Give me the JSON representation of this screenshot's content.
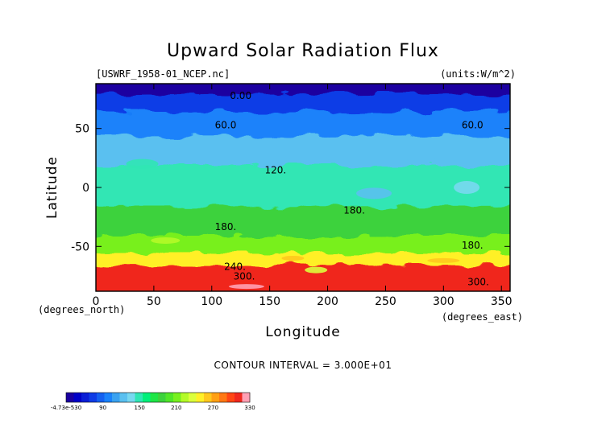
{
  "chart_data": {
    "type": "heatmap",
    "title": "Upward Solar Radiation Flux",
    "file_label": "[USWRF_1958-01_NCEP.nc]",
    "units_label": "(units:W/m^2)",
    "xlabel": "Longitude",
    "ylabel": "Latitude",
    "x_unit_label": "(degrees_east)",
    "y_unit_label": "(degrees_north)",
    "xlim": [
      0,
      357.5
    ],
    "ylim": [
      -88,
      88
    ],
    "x_ticks": [
      0,
      50,
      100,
      150,
      200,
      250,
      300,
      350
    ],
    "y_ticks": [
      50,
      0,
      -50
    ],
    "contour_interval_text": "CONTOUR INTERVAL = 3.000E+01",
    "contour_labels": [
      {
        "text": "0.00",
        "lon": 125,
        "lat": 75
      },
      {
        "text": "60.0",
        "lon": 112,
        "lat": 50
      },
      {
        "text": "60.0",
        "lon": 325,
        "lat": 50
      },
      {
        "text": "120.",
        "lon": 155,
        "lat": 12
      },
      {
        "text": "180.",
        "lon": 223,
        "lat": -22
      },
      {
        "text": "180.",
        "lon": 112,
        "lat": -36
      },
      {
        "text": "180.",
        "lon": 325,
        "lat": -52
      },
      {
        "text": "240.",
        "lon": 120,
        "lat": -70
      },
      {
        "text": "300.",
        "lon": 128,
        "lat": -78
      },
      {
        "text": "300.",
        "lon": 330,
        "lat": -83
      }
    ],
    "colorbar": {
      "tick_labels": [
        "-4.73e-530",
        "90",
        "150",
        "210",
        "270",
        "330"
      ],
      "colors": [
        "#1a00a0",
        "#0000c8",
        "#0a1ed6",
        "#0f3ce6",
        "#1460f0",
        "#1a82fa",
        "#3aa2f0",
        "#5ac0f0",
        "#78d8f0",
        "#30e6b4",
        "#00f07a",
        "#1ee646",
        "#3cd23c",
        "#50e628",
        "#78f01e",
        "#b4fa28",
        "#dcff3c",
        "#fff028",
        "#ffc81e",
        "#ffa014",
        "#ff7814",
        "#ff4614",
        "#f0281e",
        "#ffa0b4"
      ],
      "legend_min": -0.0,
      "legend_max": 330,
      "interval": 30
    },
    "grid": false,
    "data_summary": [
      {
        "lat_band": "75 to 88",
        "value_range": [
          0,
          10
        ]
      },
      {
        "lat_band": "60 to 75",
        "value_range": [
          30,
          60
        ]
      },
      {
        "lat_band": "40 to 60",
        "value_range": [
          60,
          90
        ]
      },
      {
        "lat_band": "15 to 40",
        "value_range": [
          90,
          120
        ]
      },
      {
        "lat_band": "-20 to 15",
        "value_range": [
          120,
          150
        ]
      },
      {
        "lat_band": "-45 to -20",
        "value_range": [
          150,
          180
        ]
      },
      {
        "lat_band": "-60 to -45",
        "value_range": [
          180,
          210
        ]
      },
      {
        "lat_band": "-70 to -60",
        "value_range": [
          210,
          270
        ]
      },
      {
        "lat_band": "-88 to -70",
        "value_range": [
          300,
          330
        ]
      }
    ]
  }
}
